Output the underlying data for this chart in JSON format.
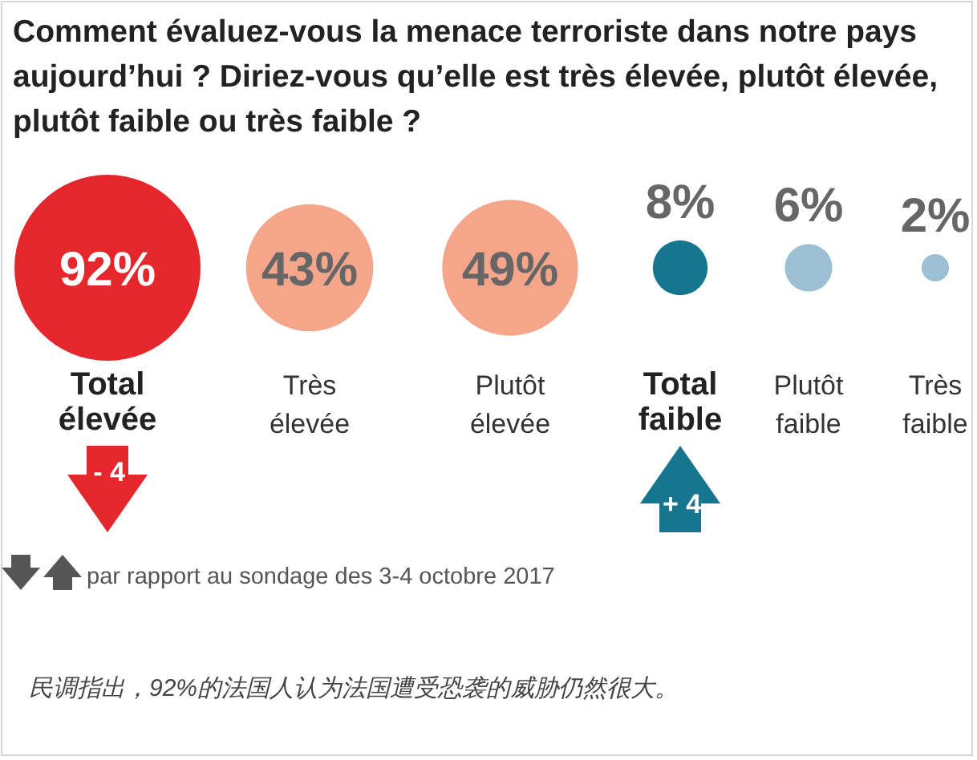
{
  "chart_data": {
    "type": "other",
    "title": "Comment évaluez-vous la menace terroriste dans notre pays aujourd’hui ? Diriez-vous qu’elle est très élevée, plutôt élevée, plutôt faible ou très faible ?",
    "categories": [
      "Total élevée",
      "Très élevée",
      "Plutôt élevée",
      "Total faible",
      "Plutôt faible",
      "Très faible"
    ],
    "values": [
      92,
      43,
      49,
      8,
      6,
      2
    ],
    "colors": [
      "#e5262b",
      "#f4a58a",
      "#f4a58a",
      "#16758f",
      "#9bbfd3",
      "#9bbfd3"
    ],
    "value_labels": [
      "92%",
      "43%",
      "49%",
      "8%",
      "6%",
      "2%"
    ],
    "annotations": [
      {
        "text": "- 4",
        "x": "Total élevée"
      },
      {
        "text": "+ 4",
        "x": "Total faible"
      },
      "par rapport au sondage des 3-4 octobre 2017",
      "民调指出，92%的法国人认为法国遭受恐袭的威胁仍然很大。"
    ]
  }
}
